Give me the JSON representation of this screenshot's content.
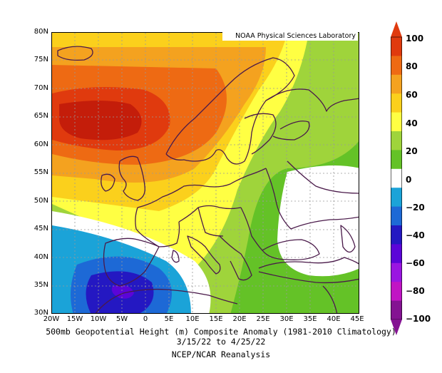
{
  "credit": "NOAA Physical Sciences Laboratory",
  "lat_labels": [
    "80N",
    "75N",
    "70N",
    "65N",
    "60N",
    "55N",
    "50N",
    "45N",
    "40N",
    "35N",
    "30N"
  ],
  "lon_labels": [
    "20W",
    "15W",
    "10W",
    "5W",
    "0",
    "5E",
    "10E",
    "15E",
    "20E",
    "25E",
    "30E",
    "35E",
    "40E",
    "45E"
  ],
  "caption": {
    "line1": "500mb Geopotential Height (m) Composite Anomaly (1981-2010 Climatology)",
    "line2": "3/15/22  to 4/25/22",
    "line3": "NCEP/NCAR Reanalysis"
  },
  "colorbar": {
    "labels": [
      "100",
      "80",
      "60",
      "40",
      "20",
      "0",
      "−20",
      "−40",
      "−60",
      "−80",
      "−100"
    ],
    "colors": [
      "#e03a0e",
      "#ee6a13",
      "#f4a21f",
      "#fbd01c",
      "#ffff43",
      "#9fd43b",
      "#64c227",
      "#ffffff",
      "#1ba3d8",
      "#1d69d6",
      "#2418c2",
      "#5b05d8",
      "#9a16e1",
      "#c114c4",
      "#841392"
    ]
  },
  "anomaly_colors": {
    "neg40": "#2418c2",
    "neg20": "#1d69d6",
    "neg0": "#1ba3d8",
    "zero": "#ffffff",
    "pos20": "#64c227",
    "pos40": "#9fd43b",
    "pos60": "#ffff43",
    "pos80": "#fbd01c",
    "pos100": "#f4a21f",
    "pos120": "#ee6a13",
    "pos140": "#e03a0e",
    "pos160": "#c41d0a",
    "neg60": "#5b05d8"
  }
}
